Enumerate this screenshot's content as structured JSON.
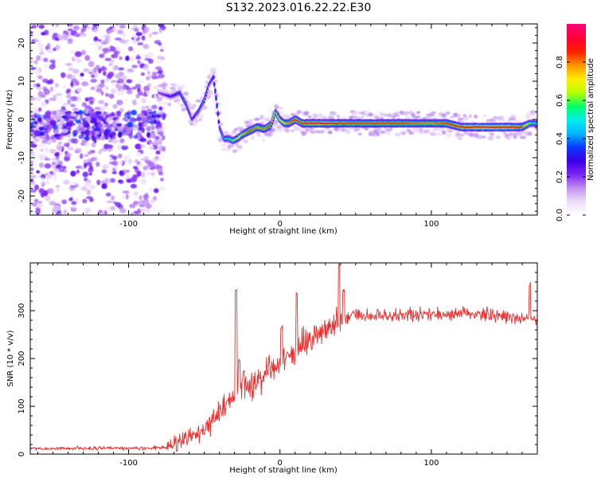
{
  "title": "S132.2023.016.22.22.E30",
  "colors": {
    "background": "#ffffff",
    "snr_line": "#ee2b2b",
    "colormap": [
      "#ffffff",
      "#ecdcf8",
      "#c08ef0",
      "#7a22f5",
      "#3a00e6",
      "#0b3bff",
      "#00b7ff",
      "#00eeee",
      "#00ff66",
      "#b7ff00",
      "#ffee00",
      "#ff9900",
      "#ff2200",
      "#ff0033",
      "#ff0077"
    ]
  },
  "chart_data": [
    {
      "type": "heatmap",
      "title": "",
      "xlabel": "Height of straight line (km)",
      "ylabel": "Frequency (Hz)",
      "xlim": [
        -165,
        170
      ],
      "ylim": [
        -25,
        25
      ],
      "xticks": [
        -100,
        0,
        100
      ],
      "yticks": [
        -20,
        -10,
        0,
        10,
        20
      ],
      "grid": false,
      "colorbar": {
        "label": "Normalized spectral amplitude",
        "range": [
          0.0,
          1.0
        ],
        "ticks": [
          0.0,
          0.2,
          0.4,
          0.6,
          0.8
        ]
      },
      "noise_region": {
        "x_range": [
          -165,
          -77
        ],
        "freq_range": [
          -25,
          25
        ],
        "amplitude_range": [
          0.03,
          0.25
        ],
        "dense_band_freq": [
          -5,
          2
        ]
      },
      "ridge": {
        "x": [
          -80,
          -72,
          -66,
          -62,
          -58,
          -54,
          -50,
          -47,
          -44,
          -42,
          -40,
          -37,
          -34,
          -31,
          -28,
          -25,
          -20,
          -15,
          -10,
          -6,
          -3,
          0,
          3,
          6,
          10,
          15,
          20,
          30,
          40,
          60,
          80,
          100,
          110,
          120,
          130,
          140,
          150,
          155,
          160,
          165,
          170
        ],
        "frequency": [
          7,
          6,
          7,
          4,
          0,
          2,
          5,
          9,
          11,
          5,
          -2,
          -5,
          -5,
          -5.5,
          -5,
          -4,
          -3,
          -2,
          -2.5,
          -1.5,
          2,
          0,
          -1,
          -1,
          0,
          -1,
          -1,
          -1,
          -1,
          -1,
          -1,
          -1,
          -1,
          -2,
          -2,
          -2,
          -2,
          -2,
          -2,
          -1,
          -1
        ],
        "amplitude": [
          0.2,
          0.3,
          0.35,
          0.4,
          0.3,
          0.35,
          0.4,
          0.3,
          0.35,
          0.4,
          0.3,
          0.45,
          0.55,
          0.6,
          0.65,
          0.75,
          0.85,
          0.8,
          0.8,
          0.85,
          0.6,
          0.7,
          0.75,
          0.8,
          0.9,
          0.85,
          0.9,
          0.9,
          0.85,
          0.85,
          0.85,
          0.8,
          0.85,
          0.9,
          0.95,
          0.95,
          0.95,
          0.9,
          0.85,
          0.6,
          0.5
        ]
      }
    },
    {
      "type": "line",
      "title": "",
      "xlabel": "Height of straight line (km)",
      "ylabel": "SNR (10 * v/v)",
      "xlim": [
        -165,
        170
      ],
      "ylim": [
        0,
        400
      ],
      "xticks": [
        -100,
        0,
        100
      ],
      "yticks": [
        0,
        100,
        200,
        300
      ],
      "grid": false,
      "series": [
        {
          "trend_x": [
            -165,
            -100,
            -75,
            -68,
            -60,
            -52,
            -45,
            -40,
            -35,
            -30,
            -25,
            -20,
            -15,
            -10,
            -5,
            0,
            5,
            10,
            15,
            20,
            25,
            30,
            35,
            40,
            45,
            50,
            60,
            80,
            100,
            120,
            140,
            160,
            170
          ],
          "trend_y": [
            12,
            12,
            14,
            22,
            35,
            50,
            70,
            90,
            110,
            120,
            135,
            140,
            150,
            165,
            180,
            190,
            205,
            215,
            225,
            235,
            250,
            265,
            275,
            280,
            285,
            290,
            290,
            290,
            292,
            295,
            290,
            285,
            280
          ],
          "spikes": [
            {
              "x": -29,
              "y": 345
            },
            {
              "x": -27,
              "y": 200
            },
            {
              "x": -24,
              "y": 180
            },
            {
              "x": 1,
              "y": 270
            },
            {
              "x": 11,
              "y": 340
            },
            {
              "x": 39,
              "y": 400
            },
            {
              "x": 42,
              "y": 345
            },
            {
              "x": 165,
              "y": 360
            }
          ]
        }
      ]
    }
  ]
}
